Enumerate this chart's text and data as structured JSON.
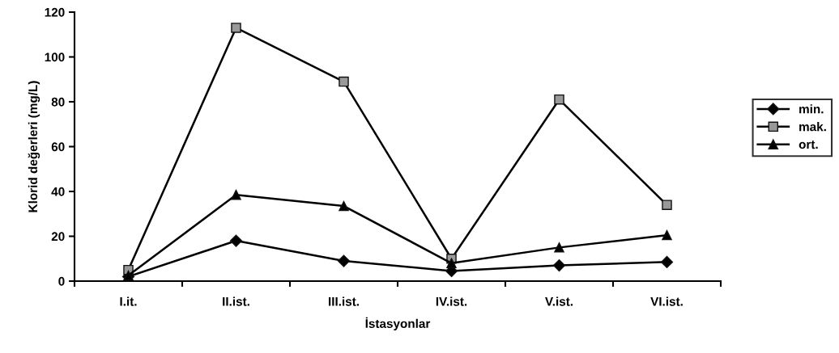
{
  "chart_data": {
    "type": "line",
    "xlabel": "İstasyonlar",
    "ylabel": "Klorid değerleri (mg/L)",
    "categories": [
      "I.it.",
      "II.ist.",
      "III.ist.",
      "IV.ist.",
      "V.ist.",
      "VI.ist."
    ],
    "series": [
      {
        "name": "min.",
        "color": "#000000",
        "marker": "diamond",
        "values": [
          2,
          18,
          9,
          4.5,
          7,
          8.5
        ]
      },
      {
        "name": "mak.",
        "color": "#000000",
        "marker": "square",
        "values": [
          5,
          113,
          89,
          10,
          81,
          34
        ]
      },
      {
        "name": "ort.",
        "color": "#000000",
        "marker": "triangle",
        "values": [
          2.5,
          38.5,
          33.5,
          8,
          15,
          20.5
        ]
      }
    ],
    "ylim": [
      0,
      120
    ],
    "yticks": [
      0,
      20,
      40,
      60,
      80,
      100,
      120
    ],
    "grid": false,
    "legend": "right",
    "line_style": "solid"
  }
}
